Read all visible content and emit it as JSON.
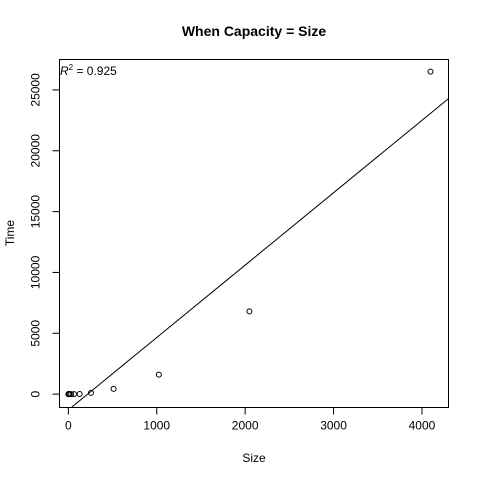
{
  "chart_data": {
    "type": "scatter",
    "title": "When Capacity = Size",
    "xlabel": "Size",
    "ylabel": "Time",
    "xlim": [
      -100,
      4300
    ],
    "ylim": [
      -1100,
      27500
    ],
    "x_ticks": [
      0,
      1000,
      2000,
      3000,
      4000
    ],
    "y_ticks": [
      0,
      5000,
      10000,
      15000,
      20000,
      25000
    ],
    "points": [
      {
        "x": 1,
        "y": 0
      },
      {
        "x": 2,
        "y": 0
      },
      {
        "x": 4,
        "y": 0
      },
      {
        "x": 8,
        "y": 0
      },
      {
        "x": 16,
        "y": 0
      },
      {
        "x": 32,
        "y": 0
      },
      {
        "x": 64,
        "y": 0
      },
      {
        "x": 128,
        "y": 10
      },
      {
        "x": 256,
        "y": 100
      },
      {
        "x": 512,
        "y": 430
      },
      {
        "x": 1024,
        "y": 1600
      },
      {
        "x": 2048,
        "y": 6800
      },
      {
        "x": 4096,
        "y": 26500
      }
    ],
    "fit_line": {
      "intercept": -1300,
      "slope": 5.95
    },
    "annotation": {
      "r_symbol": "R",
      "r_exponent": "2",
      "text": " = 0.925"
    }
  }
}
